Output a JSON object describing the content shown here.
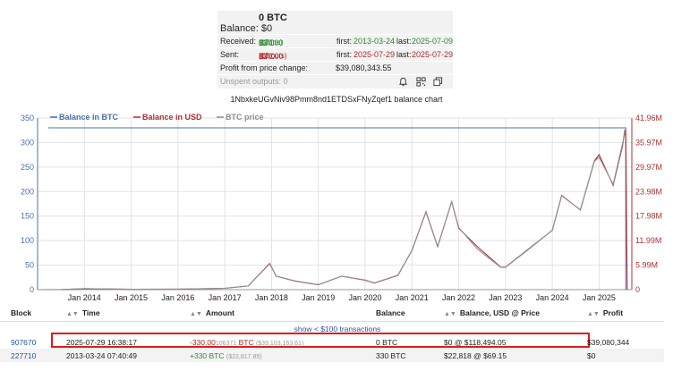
{
  "summary": {
    "balance_btc": "0 BTC",
    "balance_label": "Balance:",
    "balance_usd": "$0",
    "received_label": "Received:",
    "received_amount": "330.00",
    "received_small": "11",
    "received_unit": "BTC",
    "received_count": "(13 ins)",
    "received_first_label": "first:",
    "received_first": "2013-03-24",
    "received_last_label": "last:",
    "received_last": "2025-07-09",
    "sent_label": "Sent:",
    "sent_amount": "330.00",
    "sent_small": "11",
    "sent_unit": "BTC",
    "sent_count": "(13 outs)",
    "sent_first_label": "first:",
    "sent_first": "2025-07-29",
    "sent_last_label": "last:",
    "sent_last": "2025-07-29",
    "profit_label": "Profit from price change:",
    "profit_value": "$39,080,343.55",
    "unspent_label": "Unspent outputs: 0"
  },
  "chart_title": "1NbxkeUGvNiv98Pmm8nd1ETDSxFNyZqef1 balance chart",
  "chart_data": {
    "type": "line",
    "legend": [
      "Balance in BTC",
      "Balance in USD",
      "BTC price"
    ],
    "legend_placement": "top-left",
    "x_ticks": [
      "Jan 2014",
      "Jan 2015",
      "Jan 2016",
      "Jan 2017",
      "Jan 2018",
      "Jan 2019",
      "Jan 2020",
      "Jan 2021",
      "Jan 2022",
      "Jan 2023",
      "Jan 2024",
      "Jan 2025"
    ],
    "y_left_ticks": [
      "0",
      "25",
      "50",
      "75",
      "100",
      "125",
      "150",
      "175",
      "200",
      "225",
      "250",
      "275",
      "300",
      "325",
      "350"
    ],
    "y_left_range": [
      0,
      350
    ],
    "y_right_ticks": [
      "0",
      "5.99M",
      "11.99M",
      "17.98M",
      "23.98M",
      "29.97M",
      "35.97M",
      "41.96M"
    ],
    "y_right_range": [
      0,
      41960000
    ],
    "grid": true,
    "colors": {
      "btc": "#4a6fb0",
      "usd": "#b03232",
      "price": "#909090"
    },
    "series": [
      {
        "name": "Balance in BTC",
        "x": [
          2013.23,
          2025.57,
          2025.57,
          2025.58
        ],
        "y": [
          330,
          330,
          0,
          0
        ]
      },
      {
        "name": "Balance in USD",
        "x": [
          2013.0,
          2013.5,
          2014.0,
          2015.0,
          2016.0,
          2017.0,
          2017.5,
          2017.96,
          2018.1,
          2018.5,
          2019.0,
          2019.5,
          2020.0,
          2020.2,
          2020.7,
          2021.0,
          2021.3,
          2021.55,
          2021.85,
          2022.0,
          2022.4,
          2022.9,
          2023.0,
          2023.5,
          2024.0,
          2024.2,
          2024.6,
          2024.9,
          2025.0,
          2025.3,
          2025.5,
          2025.55,
          2025.57,
          2025.6
        ],
        "y": [
          0,
          1000,
          250000,
          80000,
          130000,
          330000,
          900000,
          6400000,
          3300000,
          2100000,
          1200000,
          3300000,
          2300000,
          1600000,
          3500000,
          9600000,
          19000000,
          10500000,
          21500000,
          15000000,
          10500000,
          5500000,
          5500000,
          10000000,
          14500000,
          23000000,
          19500000,
          31500000,
          33000000,
          25500000,
          35000000,
          39000000,
          39080000,
          0
        ]
      },
      {
        "name": "BTC price",
        "x": [
          2013.0,
          2013.5,
          2014.0,
          2015.0,
          2016.0,
          2017.0,
          2017.5,
          2017.96,
          2018.1,
          2018.5,
          2019.0,
          2019.5,
          2020.0,
          2020.2,
          2020.7,
          2021.0,
          2021.3,
          2021.55,
          2021.85,
          2022.0,
          2022.4,
          2022.9,
          2023.0,
          2023.5,
          2024.0,
          2024.2,
          2024.6,
          2024.9,
          2025.0,
          2025.3,
          2025.5,
          2025.57
        ],
        "y": [
          13,
          100,
          800,
          250,
          430,
          1000,
          2700,
          19000,
          10000,
          6500,
          3700,
          10000,
          7200,
          5000,
          10700,
          29000,
          58000,
          32000,
          65000,
          46000,
          30000,
          16500,
          16500,
          30000,
          44000,
          70000,
          59000,
          95000,
          98000,
          78000,
          108000,
          118494
        ]
      }
    ]
  },
  "table": {
    "headers": [
      "Block",
      "Time",
      "Amount",
      "Balance",
      "Balance, USD @ Price",
      "Profit"
    ],
    "show_link": "show < $100 transactions",
    "rows": [
      {
        "block": "907670",
        "time": "2025-07-29 16:38:17",
        "amount": "-330.00",
        "amount_small": "106371",
        "amount_unit": "BTC",
        "amount_usd": "($39,103,163.61)",
        "balance": "0 BTC",
        "balance_usd": "$0 @ $118,494.05",
        "profit": "$39,080,344"
      },
      {
        "block": "227710",
        "time": "2013-03-24 07:40:49",
        "amount": "+330 BTC",
        "amount_small": "",
        "amount_unit": "",
        "amount_usd": "($22,817.85)",
        "balance": "330 BTC",
        "balance_usd": "$22,818 @ $69.15",
        "profit": "$0"
      }
    ]
  }
}
